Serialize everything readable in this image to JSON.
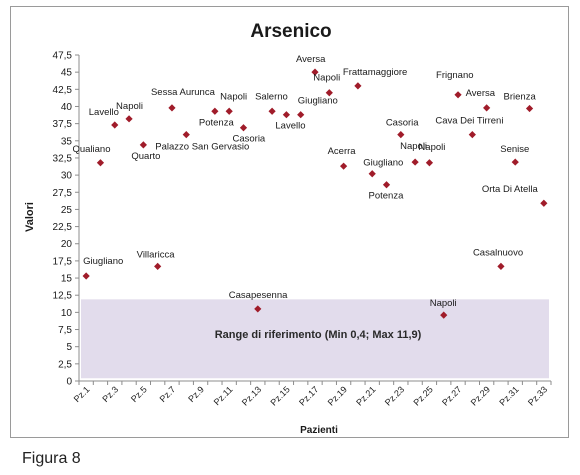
{
  "chart_data": {
    "type": "scatter",
    "title": "Arsenico",
    "xlabel": "Pazienti",
    "ylabel": "Valori",
    "ylim": [
      0,
      47.5
    ],
    "ytick_step": 2.5,
    "y_ticks": [
      "0",
      "2,5",
      "5",
      "7,5",
      "10",
      "12,5",
      "15",
      "17,5",
      "20",
      "22,5",
      "25",
      "27,5",
      "30",
      "32,5",
      "35",
      "37,5",
      "40",
      "42,5",
      "45",
      "47,5"
    ],
    "x_tick_labels": [
      "Pz.1",
      "Pz.3",
      "Pz.5",
      "Pz.7",
      "Pz.9",
      "Pz.11",
      "Pz.13",
      "Pz.15",
      "Pz.17",
      "Pz.19",
      "Pz.21",
      "Pz.23",
      "Pz.25",
      "Pz.27",
      "Pz.29",
      "Pz.31",
      "Pz.33"
    ],
    "marker_color": "#a01c2a",
    "grid": false,
    "reference_range": {
      "min": 0.4,
      "max": 11.9,
      "label": "Range di riferimento  (Min 0,4; Max 11,9)",
      "color": "#e2dcec"
    },
    "points": [
      {
        "x": 1,
        "y": 15.3,
        "label": "Giugliano"
      },
      {
        "x": 2,
        "y": 31.8,
        "label": "Qualiano"
      },
      {
        "x": 3,
        "y": 37.3,
        "label": "Lavello"
      },
      {
        "x": 4,
        "y": 38.2,
        "label": "Napoli"
      },
      {
        "x": 5,
        "y": 34.4,
        "label": "Quarto"
      },
      {
        "x": 6,
        "y": 16.7,
        "label": "Villaricca"
      },
      {
        "x": 7,
        "y": 39.8,
        "label": "Sessa Aurunca"
      },
      {
        "x": 8,
        "y": 35.9,
        "label": "Palazzo San Gervasio"
      },
      {
        "x": 10,
        "y": 39.3,
        "label": "Potenza"
      },
      {
        "x": 11,
        "y": 39.3,
        "label": "Napoli"
      },
      {
        "x": 12,
        "y": 36.9,
        "label": "Casoria"
      },
      {
        "x": 13,
        "y": 10.5,
        "label": "Casapesenna"
      },
      {
        "x": 14,
        "y": 39.3,
        "label": "Salerno"
      },
      {
        "x": 15,
        "y": 38.8,
        "label": "Lavello"
      },
      {
        "x": 16,
        "y": 38.8,
        "label": "Giugliano"
      },
      {
        "x": 17,
        "y": 45.0,
        "label": "Aversa"
      },
      {
        "x": 18,
        "y": 42.0,
        "label": "Napoli"
      },
      {
        "x": 19,
        "y": 31.3,
        "label": "Acerra"
      },
      {
        "x": 20,
        "y": 43.0,
        "label": "Frattamaggiore"
      },
      {
        "x": 21,
        "y": 30.2,
        "label": "Giugliano"
      },
      {
        "x": 22,
        "y": 28.6,
        "label": "Potenza"
      },
      {
        "x": 23,
        "y": 35.9,
        "label": "Casoria"
      },
      {
        "x": 24,
        "y": 31.9,
        "label": "Napoli"
      },
      {
        "x": 25,
        "y": 31.8,
        "label": "Napoli"
      },
      {
        "x": 26,
        "y": 9.6,
        "label": "Napoli"
      },
      {
        "x": 27,
        "y": 41.7,
        "label": "Frignano"
      },
      {
        "x": 28,
        "y": 35.9,
        "label": "Cava Dei Tirreni"
      },
      {
        "x": 29,
        "y": 39.8,
        "label": "Aversa"
      },
      {
        "x": 30,
        "y": 16.7,
        "label": "Casalnuovo"
      },
      {
        "x": 31,
        "y": 31.9,
        "label": "Senise"
      },
      {
        "x": 32,
        "y": 39.7,
        "label": "Brienza"
      },
      {
        "x": 33,
        "y": 25.9,
        "label": "Orta Di Atella"
      }
    ]
  },
  "caption": "Figura 8"
}
